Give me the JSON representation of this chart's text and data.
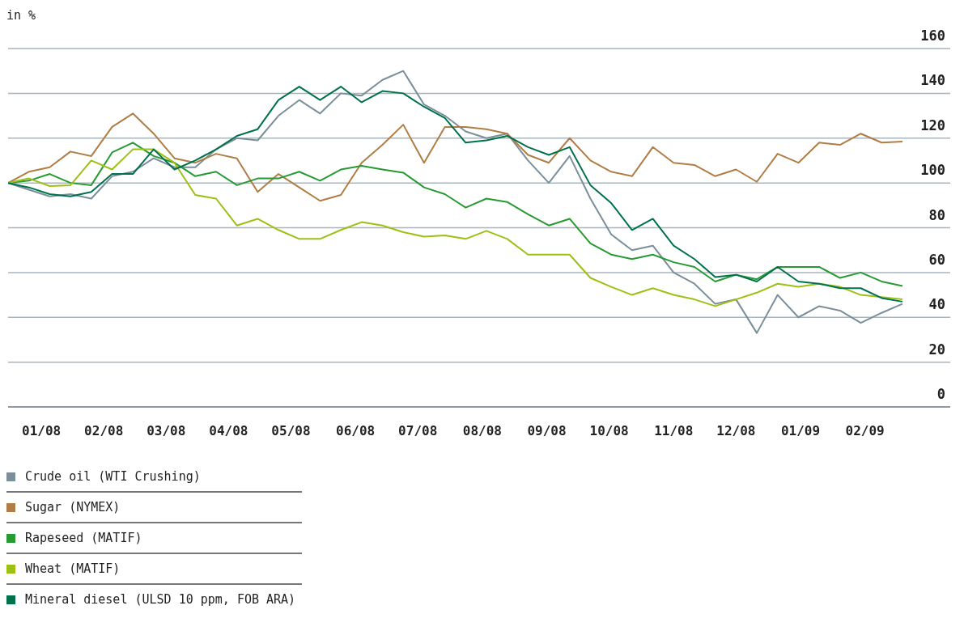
{
  "chart_data": {
    "type": "line",
    "ylabel": "in %",
    "x": [
      "2008-01-01",
      "2008-01-11",
      "2008-01-21",
      "2008-01-31",
      "2008-02-10",
      "2008-02-20",
      "2008-03-01",
      "2008-03-11",
      "2008-03-21",
      "2008-03-31",
      "2008-04-10",
      "2008-04-20",
      "2008-04-30",
      "2008-05-10",
      "2008-05-20",
      "2008-05-30",
      "2008-06-09",
      "2008-06-19",
      "2008-06-29",
      "2008-07-09",
      "2008-07-19",
      "2008-07-29",
      "2008-08-08",
      "2008-08-18",
      "2008-08-28",
      "2008-09-07",
      "2008-09-17",
      "2008-09-27",
      "2008-10-07",
      "2008-10-17",
      "2008-10-27",
      "2008-11-06",
      "2008-11-16",
      "2008-11-26",
      "2008-12-06",
      "2008-12-16",
      "2008-12-26",
      "2009-01-05",
      "2009-01-15",
      "2009-01-25",
      "2009-02-04",
      "2009-02-14",
      "2009-02-24",
      "2009-03-06"
    ],
    "series": [
      {
        "name": "Crude oil (WTI Crushing)",
        "color": "#7a8f9a",
        "values": [
          100,
          97,
          94,
          95,
          93,
          103,
          105,
          111,
          107,
          107,
          115,
          120,
          119,
          130,
          137,
          131,
          140,
          139,
          146,
          150,
          135,
          130,
          123,
          120,
          122,
          110,
          100,
          112,
          93,
          77,
          70,
          72,
          60,
          55,
          46,
          48,
          33,
          50,
          40,
          45,
          43,
          37.5,
          42,
          46
        ]
      },
      {
        "name": "Sugar (NYMEX)",
        "color": "#b07d45",
        "values": [
          100,
          105,
          107,
          114,
          112,
          125,
          131,
          122,
          111,
          109,
          113,
          111,
          96,
          104,
          98,
          92,
          94.6,
          109,
          117,
          126,
          109,
          125,
          125,
          124,
          122,
          112.5,
          109,
          120,
          110,
          105,
          103,
          116,
          109,
          108,
          103,
          106,
          100.5,
          113,
          109,
          118,
          117,
          122,
          118,
          118.5
        ]
      },
      {
        "name": "Rapeseed (MATIF)",
        "color": "#279a33",
        "values": [
          100,
          101,
          104,
          100,
          99,
          113.6,
          118,
          112,
          109,
          103,
          105,
          99,
          102,
          102,
          105,
          101,
          106,
          107.6,
          106,
          104.6,
          98,
          95,
          89,
          93,
          91.5,
          86,
          81,
          84,
          73,
          68,
          66,
          68,
          64.6,
          62.5,
          56,
          59,
          57,
          62.5,
          62.5,
          62.5,
          57.6,
          60,
          56,
          54
        ]
      },
      {
        "name": "Wheat (MATIF)",
        "color": "#9dc014",
        "values": [
          100,
          102,
          98.6,
          99,
          110,
          106,
          115,
          115,
          109,
          94.6,
          93,
          81,
          84,
          79,
          75,
          75,
          79,
          82.5,
          81,
          78,
          76,
          76.6,
          75,
          78.6,
          75,
          68,
          68,
          68,
          57.6,
          53.6,
          50,
          53,
          50,
          48,
          45,
          48,
          51,
          55,
          53.6,
          55,
          53.6,
          50,
          49,
          48
        ]
      },
      {
        "name": "Mineral diesel (ULSD 10 ppm, FOB ARA)",
        "color": "#00714d",
        "values": [
          100,
          98,
          95,
          94,
          96,
          104,
          104,
          115,
          106,
          110,
          115,
          121,
          124,
          137,
          143,
          137,
          143,
          136,
          141,
          140,
          134,
          129,
          118,
          119,
          121,
          116,
          112.5,
          116,
          99,
          91,
          79,
          84,
          72,
          66,
          58,
          59,
          56,
          62.5,
          56,
          55,
          53,
          53,
          48.6,
          47
        ]
      }
    ],
    "xlim": [
      "2008-01-01",
      "2009-03-29"
    ],
    "xticks": [
      {
        "value": "2008-01-17",
        "label": "01/08"
      },
      {
        "value": "2008-02-16",
        "label": "02/08"
      },
      {
        "value": "2008-03-17",
        "label": "03/08"
      },
      {
        "value": "2008-04-16",
        "label": "04/08"
      },
      {
        "value": "2008-05-16",
        "label": "05/08"
      },
      {
        "value": "2008-06-16",
        "label": "06/08"
      },
      {
        "value": "2008-07-16",
        "label": "07/08"
      },
      {
        "value": "2008-08-16",
        "label": "08/08"
      },
      {
        "value": "2008-09-16",
        "label": "09/08"
      },
      {
        "value": "2008-10-16",
        "label": "10/08"
      },
      {
        "value": "2008-11-16",
        "label": "11/08"
      },
      {
        "value": "2008-12-16",
        "label": "12/08"
      },
      {
        "value": "2009-01-16",
        "label": "01/09"
      },
      {
        "value": "2009-02-16",
        "label": "02/09"
      }
    ],
    "ylim": [
      0,
      160
    ],
    "yticks": [
      0,
      20,
      40,
      60,
      80,
      100,
      120,
      140,
      160
    ],
    "grid": "y",
    "legend": "bottom",
    "marker": "none",
    "line_style": "solid"
  }
}
